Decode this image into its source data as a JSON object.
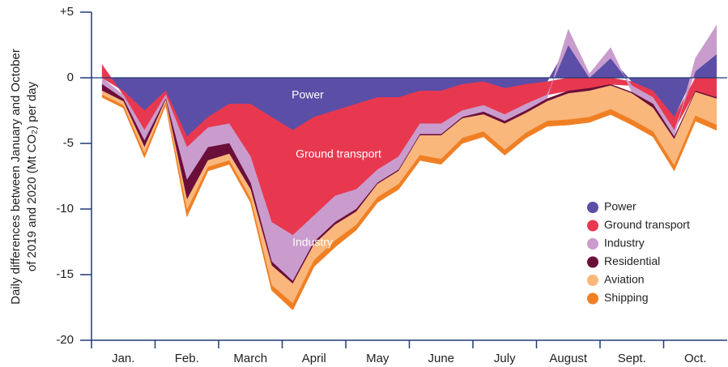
{
  "chart_data": {
    "type": "area",
    "stacked": true,
    "y_label": [
      "Daily differences between January and October",
      "of 2019 and 2020 (Mt CO₂) per day"
    ],
    "annotations": [
      "Power",
      "Ground transport",
      "Industry"
    ],
    "categories": [
      null,
      "Jan.",
      null,
      null,
      "Feb.",
      null,
      null,
      "March",
      null,
      null,
      "April",
      null,
      null,
      "May",
      null,
      null,
      "June",
      null,
      null,
      "July",
      null,
      null,
      "August",
      null,
      null,
      "Sept.",
      null,
      null,
      "Oct.",
      null
    ],
    "series": [
      {
        "name": "Power",
        "color": "#5b4ea6",
        "values": [
          0,
          -1,
          -2.5,
          -1,
          -4.5,
          -3,
          -2,
          -2,
          -3,
          -4,
          -3,
          -2.5,
          -2,
          -1.5,
          -1.5,
          -1,
          -1,
          -0.5,
          -0.3,
          -0.8,
          -0.5,
          -0.3,
          2.5,
          0,
          1.5,
          -0.3,
          -1,
          -3,
          0.5,
          1.8
        ]
      },
      {
        "name": "Ground transport",
        "color": "#e8384f",
        "values": [
          1,
          -0.3,
          -1.5,
          -0.3,
          -0.8,
          -0.8,
          -1.5,
          -4,
          -8,
          -8,
          -7.5,
          -6.5,
          -6.5,
          -5.5,
          -4.5,
          -2.5,
          -2.5,
          -2,
          -1.8,
          -2,
          -1.5,
          -1,
          -1,
          -0.8,
          -0.5,
          -0.3,
          -0.5,
          -1,
          -1,
          -1.5
        ]
      },
      {
        "name": "Industry",
        "color": "#c99ccd",
        "values": [
          -0.5,
          -0.3,
          -0.8,
          -0.3,
          -2.5,
          -1.5,
          -1.5,
          -2,
          -3,
          -3.5,
          -2,
          -2,
          -1.5,
          -1,
          -1,
          -0.8,
          -0.8,
          -0.5,
          -0.5,
          -0.5,
          -0.5,
          -0.3,
          1.2,
          0.3,
          0.8,
          -0.5,
          -0.5,
          -0.5,
          1,
          2.2
        ]
      },
      {
        "name": "Residential",
        "color": "#6b0f3a",
        "values": [
          -0.5,
          -0.2,
          -0.5,
          -0.1,
          -1.5,
          -1,
          -0.8,
          -0.5,
          -0.3,
          -0.2,
          -0.2,
          -0.2,
          -0.2,
          -0.1,
          -0.1,
          -0.1,
          -0.1,
          -0.1,
          -0.2,
          -0.2,
          -0.2,
          -0.2,
          -0.2,
          -0.2,
          -0.1,
          -0.1,
          -0.3,
          -0.2,
          -0.1,
          -0.1
        ]
      },
      {
        "name": "Aviation",
        "color": "#f9b77c",
        "values": [
          -0.3,
          -0.3,
          -0.5,
          -0.2,
          -0.8,
          -0.5,
          -0.5,
          -0.7,
          -1.5,
          -1.5,
          -1.2,
          -1.2,
          -1,
          -1,
          -1,
          -1.5,
          -1.8,
          -1.5,
          -1.3,
          -2,
          -1.5,
          -1.5,
          -2,
          -2,
          -1.8,
          -2,
          -1.8,
          -2,
          -1.8,
          -2
        ]
      },
      {
        "name": "Shipping",
        "color": "#f07f24",
        "values": [
          -0.2,
          -0.2,
          -0.3,
          -0.2,
          -0.5,
          -0.3,
          -0.3,
          -0.3,
          -0.4,
          -0.5,
          -0.5,
          -0.5,
          -0.4,
          -0.4,
          -0.4,
          -0.4,
          -0.4,
          -0.4,
          -0.4,
          -0.4,
          -0.4,
          -0.4,
          -0.4,
          -0.4,
          -0.4,
          -0.4,
          -0.4,
          -0.4,
          -0.4,
          -0.4
        ]
      }
    ],
    "ylim": [
      -20,
      5
    ],
    "yticks": [
      {
        "value": 5,
        "label": "+5"
      },
      0,
      -5,
      -10,
      -15,
      -20
    ],
    "legend": "lower right"
  }
}
